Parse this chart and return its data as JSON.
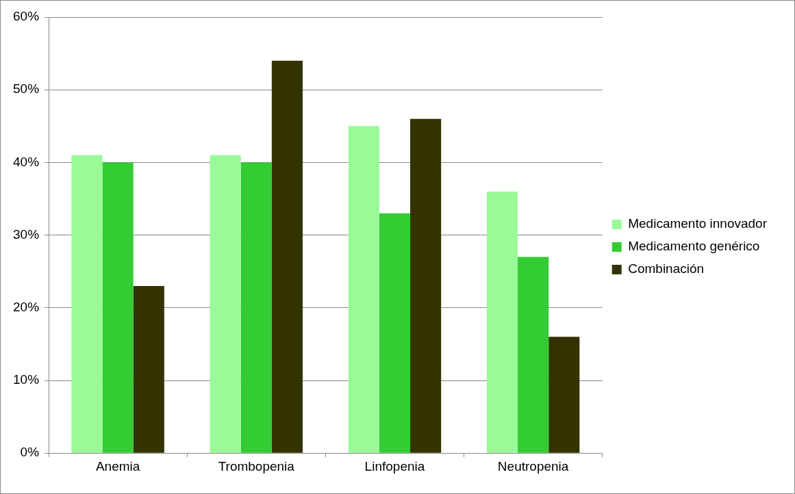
{
  "chart_data": {
    "type": "bar",
    "categories": [
      "Anemia",
      "Trombopenia",
      "Linfopenia",
      "Neutropenia"
    ],
    "series": [
      {
        "name": "Medicamento innovador",
        "color": "#98fb98",
        "values": [
          41,
          41,
          45,
          36
        ]
      },
      {
        "name": "Medicamento genérico",
        "color": "#33cc33",
        "values": [
          40,
          40,
          33,
          27
        ]
      },
      {
        "name": "Combinación",
        "color": "#333300",
        "values": [
          23,
          54,
          46,
          16
        ]
      }
    ],
    "ylim": [
      0,
      60
    ],
    "yticks": [
      {
        "value": 0,
        "label": "0%"
      },
      {
        "value": 10,
        "label": "10%"
      },
      {
        "value": 20,
        "label": "20%"
      },
      {
        "value": 30,
        "label": "30%"
      },
      {
        "value": 40,
        "label": "40%"
      },
      {
        "value": 50,
        "label": "50%"
      },
      {
        "value": 60,
        "label": "60%"
      }
    ],
    "grid": "y",
    "legend": "right"
  }
}
